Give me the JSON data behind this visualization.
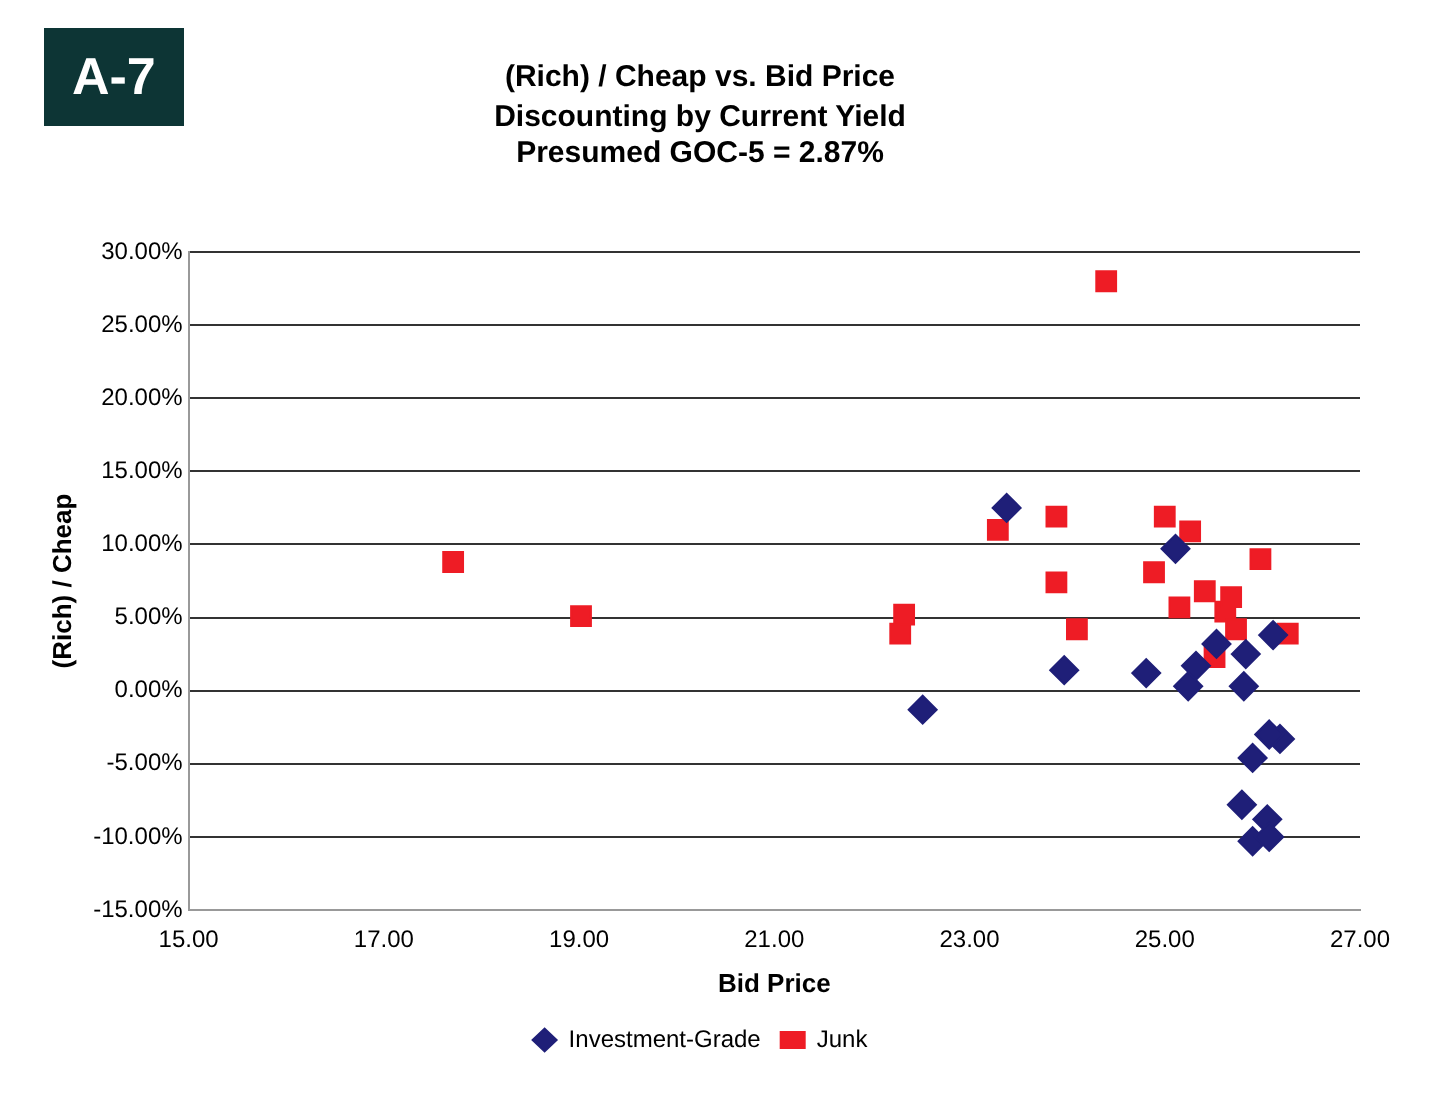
{
  "chart_data": {
    "type": "scatter",
    "title": "(Rich) / Cheap vs. Bid Price",
    "subtitle": "Discounting by Current Yield\nPresumed GOC-5 = 2.87%",
    "xlabel": "Bid Price",
    "ylabel": "(Rich) / Cheap",
    "annotations": [
      "A-7"
    ],
    "xlim": [
      15,
      27
    ],
    "xticks": [
      {
        "value": 15,
        "label": "15.00"
      },
      {
        "value": 17,
        "label": "17.00"
      },
      {
        "value": 19,
        "label": "19.00"
      },
      {
        "value": 21,
        "label": "21.00"
      },
      {
        "value": 23,
        "label": "23.00"
      },
      {
        "value": 25,
        "label": "25.00"
      },
      {
        "value": 27,
        "label": "27.00"
      }
    ],
    "ylim": [
      -15,
      30
    ],
    "yticks": [
      {
        "value": -15,
        "label": "-15.00%"
      },
      {
        "value": -10,
        "label": "-10.00%"
      },
      {
        "value": -5,
        "label": "-5.00%"
      },
      {
        "value": 0,
        "label": "0.00%"
      },
      {
        "value": 5,
        "label": "5.00%"
      },
      {
        "value": 10,
        "label": "10.00%"
      },
      {
        "value": 15,
        "label": "15.00%"
      },
      {
        "value": 20,
        "label": "20.00%"
      },
      {
        "value": 25,
        "label": "25.00%"
      },
      {
        "value": 30,
        "label": "30.00%"
      }
    ],
    "grid": "y",
    "legend": "bottom",
    "series": [
      {
        "name": "Investment-Grade",
        "color": "#1f1f78",
        "marker": "diamond",
        "x": [
          23.38,
          22.52,
          23.97,
          24.81,
          25.11,
          25.24,
          25.32,
          25.53,
          25.81,
          25.83,
          26.11,
          26.18,
          26.07,
          25.9,
          25.79,
          26.05,
          25.9,
          26.07
        ],
        "values": [
          12.5,
          -1.3,
          1.4,
          1.2,
          9.7,
          0.3,
          1.7,
          3.2,
          0.3,
          2.5,
          3.8,
          -3.3,
          -3.0,
          -4.6,
          -7.8,
          -8.8,
          -10.3,
          -10.0
        ]
      },
      {
        "name": "Junk",
        "color": "#ee1c25",
        "marker": "square",
        "x": [
          17.71,
          19.02,
          22.29,
          22.33,
          23.29,
          23.89,
          23.89,
          24.1,
          24.4,
          24.89,
          25.0,
          25.15,
          25.26,
          25.41,
          25.51,
          25.62,
          25.68,
          25.73,
          25.98,
          26.26
        ],
        "values": [
          8.8,
          5.1,
          3.9,
          5.2,
          11.0,
          11.9,
          7.4,
          4.2,
          28.0,
          8.1,
          11.9,
          5.7,
          10.9,
          6.8,
          2.3,
          5.4,
          6.4,
          4.2,
          9.0,
          3.9
        ]
      }
    ]
  }
}
